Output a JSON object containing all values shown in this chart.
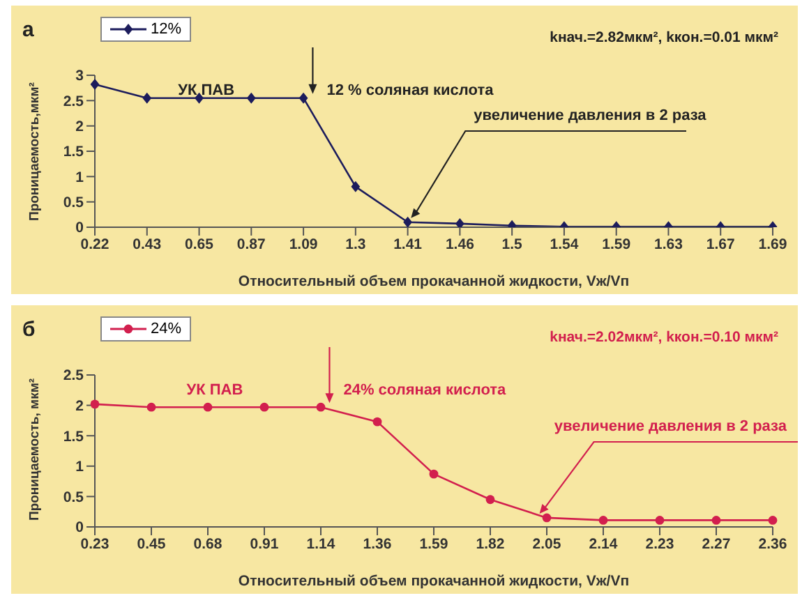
{
  "chart_data": [
    {
      "type": "line",
      "annotations": [
        "а",
        "kнач.=2.82мкм², kкон.=0.01 мкм²",
        "УК ПАВ",
        {
          "text": "12 %  соляная кислота",
          "x": "1.09",
          "y": 2.55
        },
        {
          "text": "увеличение давления в 2 раза",
          "x": "1.41",
          "y": 0.1
        }
      ],
      "xlabel": "Относительный объем прокачанной жидкости, Vж/Vп",
      "ylabel": "Проницаемость,мкм²",
      "categories": [
        "0.22",
        "0.43",
        "0.65",
        "0.87",
        "1.09",
        "1.3",
        "1.41",
        "1.46",
        "1.5",
        "1.54",
        "1.59",
        "1.63",
        "1.67",
        "1.69"
      ],
      "series": [
        {
          "name": "12%",
          "color": "#1c1c5c",
          "values": [
            2.82,
            2.55,
            2.55,
            2.55,
            2.55,
            0.8,
            0.1,
            0.07,
            0.03,
            0.01,
            0.01,
            0.01,
            0.01,
            0.01
          ]
        }
      ],
      "ylim": [
        0,
        3
      ],
      "yticks": [
        0,
        0.5,
        1,
        1.5,
        2,
        2.5,
        3
      ],
      "marker": "diamond",
      "legend": "top left",
      "grid": false
    },
    {
      "type": "line",
      "annotations": [
        "б",
        "kнач.=2.02мкм², kкон.=0.10 мкм²",
        "УК ПАВ",
        {
          "text": "24%  соляная кислота",
          "x": "1.14",
          "y": 1.97
        },
        {
          "text": "увеличение давления в 2 раза",
          "x": "2.05",
          "y": 0.15
        }
      ],
      "xlabel": "Относительный объем прокачанной жидкости, Vж/Vп",
      "ylabel": "Проницаемость, мкм²",
      "categories": [
        "0.23",
        "0.45",
        "0.68",
        "0.91",
        "1.14",
        "1.36",
        "1.59",
        "1.82",
        "2.05",
        "2.14",
        "2.23",
        "2.27",
        "2.36"
      ],
      "series": [
        {
          "name": "24%",
          "color": "#d21f4e",
          "values": [
            2.02,
            1.97,
            1.97,
            1.97,
            1.97,
            1.73,
            0.87,
            0.45,
            0.15,
            0.11,
            0.11,
            0.11,
            0.11
          ]
        }
      ],
      "ylim": [
        0,
        2.5
      ],
      "yticks": [
        0,
        0.5,
        1,
        1.5,
        2,
        2.5
      ],
      "marker": "circle",
      "legend": "top left",
      "grid": false
    }
  ]
}
